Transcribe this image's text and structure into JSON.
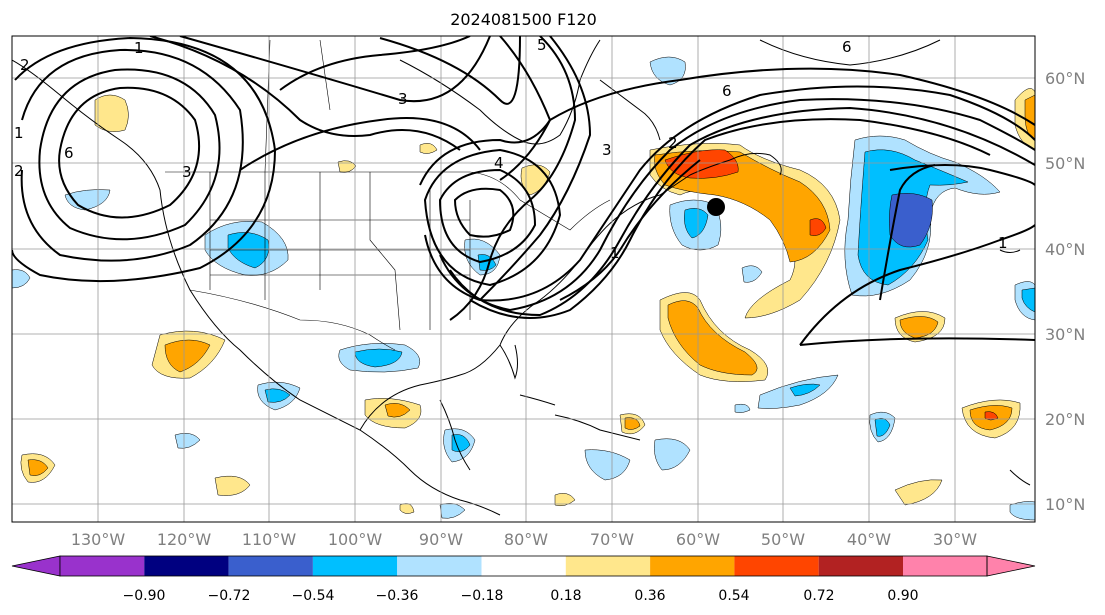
{
  "title": "2024081500 F120",
  "lon_ticks": [
    "130°W",
    "120°W",
    "110°W",
    "100°W",
    "90°W",
    "80°W",
    "70°W",
    "60°W",
    "50°W",
    "40°W",
    "30°W"
  ],
  "lat_ticks": [
    "60°N",
    "50°N",
    "40°N",
    "30°N",
    "20°N",
    "10°N"
  ],
  "colorbar": {
    "colors": [
      "#9932cc",
      "#000080",
      "#3a5fcd",
      "#00bfff",
      "#b0e2ff",
      "#ffffff",
      "#ffe78c",
      "#ffa500",
      "#ff4500",
      "#b22222",
      "#ff82ab"
    ],
    "labels": [
      "−0.90",
      "−0.72",
      "−0.54",
      "−0.36",
      "−0.18",
      "0.18",
      "0.36",
      "0.54",
      "0.72",
      "0.90"
    ]
  },
  "contour_labels": [
    "1",
    "2",
    "3",
    "6",
    "3",
    "4",
    "5",
    "3",
    "2",
    "6",
    "1",
    "1",
    "1",
    "2",
    "6"
  ],
  "storm_marker": {
    "lat": 44.5,
    "lon": -57
  }
}
